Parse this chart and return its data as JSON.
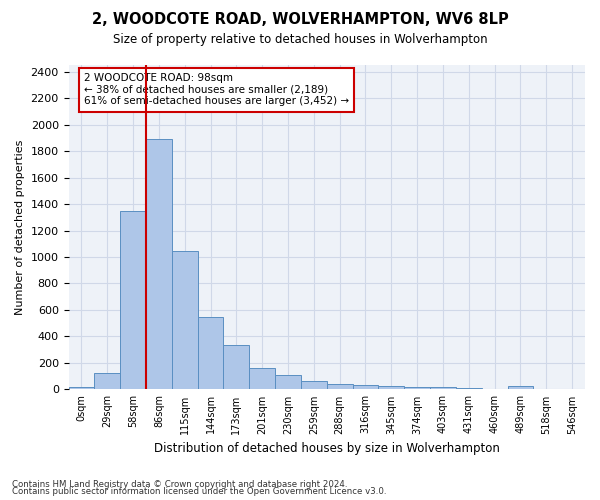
{
  "title": "2, WOODCOTE ROAD, WOLVERHAMPTON, WV6 8LP",
  "subtitle": "Size of property relative to detached houses in Wolverhampton",
  "xlabel": "Distribution of detached houses by size in Wolverhampton",
  "ylabel": "Number of detached properties",
  "footnote1": "Contains HM Land Registry data © Crown copyright and database right 2024.",
  "footnote2": "Contains public sector information licensed under the Open Government Licence v3.0.",
  "annotation_title": "2 WOODCOTE ROAD: 98sqm",
  "annotation_line1": "← 38% of detached houses are smaller (2,189)",
  "annotation_line2": "61% of semi-detached houses are larger (3,452) →",
  "bar_values": [
    15,
    125,
    1345,
    1890,
    1045,
    545,
    335,
    165,
    110,
    65,
    40,
    30,
    25,
    20,
    15,
    10,
    5,
    25,
    5,
    5
  ],
  "bin_labels": [
    "0sqm",
    "29sqm",
    "58sqm",
    "86sqm",
    "115sqm",
    "144sqm",
    "173sqm",
    "201sqm",
    "230sqm",
    "259sqm",
    "288sqm",
    "316sqm",
    "345sqm",
    "374sqm",
    "403sqm",
    "431sqm",
    "460sqm",
    "489sqm",
    "518sqm",
    "546sqm"
  ],
  "bar_color": "#aec6e8",
  "bar_edge_color": "#5a8fc2",
  "grid_color": "#d0d8e8",
  "background_color": "#eef2f8",
  "marker_color": "#cc0000",
  "ylim": [
    0,
    2450
  ],
  "yticks": [
    0,
    200,
    400,
    600,
    800,
    1000,
    1200,
    1400,
    1600,
    1800,
    2000,
    2200,
    2400
  ]
}
